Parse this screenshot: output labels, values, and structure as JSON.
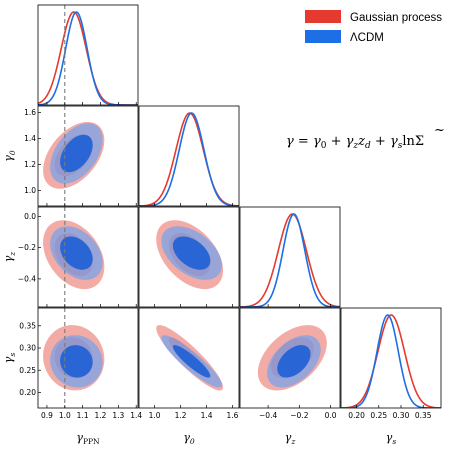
{
  "chart_data": {
    "type": "corner",
    "equation": "γ = γ0 + γz zd + γs lnΣ̃",
    "equation_parts": {
      "lhs": "γ",
      "eq": " = ",
      "t1": "γ",
      "t1sub": "0",
      "plus1": " + ",
      "t2": "γ",
      "t2sub": "z",
      "t2b": "z",
      "t2bsub": "d",
      "plus2": " + ",
      "t3": "γ",
      "t3sub": "s",
      "ln": "ln",
      "sigma": "Σ",
      "tilde": "~"
    },
    "params": [
      {
        "name": "γPPN",
        "label": "γ",
        "label_sub": "PPN",
        "range": [
          0.85,
          1.41
        ],
        "ticks": [
          0.9,
          1.0,
          1.1,
          1.2,
          1.3,
          1.4
        ],
        "tick_labels": [
          "0.9",
          "1.0",
          "1.1",
          "1.2",
          "1.3",
          "1.4"
        ]
      },
      {
        "name": "γ0",
        "label": "γ",
        "label_sub": "0",
        "range": [
          0.88,
          1.65
        ],
        "ticks": [
          1.0,
          1.2,
          1.4,
          1.6
        ],
        "tick_labels": [
          "1.0",
          "1.2",
          "1.4",
          "1.6"
        ]
      },
      {
        "name": "γz",
        "label": "γ",
        "label_sub": "z",
        "range": [
          -0.58,
          0.06
        ],
        "ticks": [
          -0.4,
          -0.2,
          0.0
        ],
        "tick_labels": [
          "−0.4",
          "−0.2",
          "0.0"
        ]
      },
      {
        "name": "γs",
        "label": "γ",
        "label_sub": "s",
        "range": [
          0.165,
          0.39
        ],
        "ticks": [
          0.2,
          0.25,
          0.3,
          0.35
        ],
        "tick_labels": [
          "0.20",
          "0.25",
          "0.30",
          "0.35"
        ]
      }
    ],
    "reference_line": {
      "param": "γPPN",
      "value": 1.0,
      "style": "dashed",
      "color": "#7a7a7a"
    },
    "series": [
      {
        "name": "Gaussian process",
        "color": "#e53a2f",
        "mean": [
          1.05,
          1.27,
          -0.245,
          0.278
        ],
        "sigma": [
          0.07,
          0.105,
          0.09,
          0.03
        ],
        "corr": [
          [
            1,
            0.45,
            -0.35,
            -0.05
          ],
          [
            0.45,
            1,
            -0.45,
            -0.9
          ],
          [
            -0.35,
            -0.45,
            1,
            0.45
          ],
          [
            -0.05,
            -0.9,
            0.45,
            1
          ]
        ]
      },
      {
        "name": "ΛCDM",
        "color": "#1c6fe4",
        "mean": [
          1.065,
          1.285,
          -0.235,
          0.27
        ],
        "sigma": [
          0.06,
          0.095,
          0.07,
          0.024
        ],
        "corr": [
          [
            1,
            0.45,
            -0.35,
            -0.05
          ],
          [
            0.45,
            1,
            -0.45,
            -0.9
          ],
          [
            -0.35,
            -0.45,
            1,
            0.45
          ],
          [
            -0.05,
            -0.9,
            0.45,
            1
          ]
        ]
      }
    ],
    "legend": {
      "position": "top-right",
      "entries": [
        "Gaussian process",
        "ΛCDM"
      ]
    },
    "contour_levels": [
      "68%",
      "95%"
    ]
  }
}
